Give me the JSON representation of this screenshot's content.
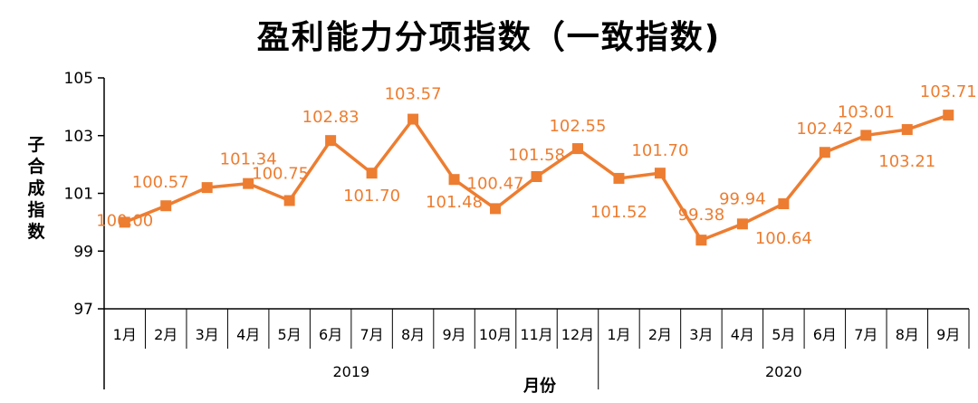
{
  "chart_data": {
    "type": "line",
    "title": "盈利能力分项指数（一致指数)",
    "ylabel": "子合成指数",
    "xlabel": "月份",
    "ylim": [
      97,
      105
    ],
    "yticks": [
      97,
      99,
      101,
      103,
      105
    ],
    "categories": [
      "1月",
      "2月",
      "3月",
      "4月",
      "5月",
      "6月",
      "7月",
      "8月",
      "9月",
      "10月",
      "11月",
      "12月",
      "1月",
      "2月",
      "3月",
      "4月",
      "5月",
      "6月",
      "7月",
      "8月",
      "9月"
    ],
    "groups": [
      {
        "label": "2019",
        "count": 12
      },
      {
        "label": "2020",
        "count": 9
      }
    ],
    "series": [
      {
        "values": [
          100.0,
          100.57,
          101.2,
          101.34,
          100.75,
          102.83,
          101.7,
          103.57,
          101.48,
          100.47,
          101.58,
          102.55,
          101.52,
          101.7,
          99.38,
          99.94,
          100.64,
          102.42,
          103.01,
          103.21,
          103.71
        ],
        "labels": [
          "100.00",
          "100.57",
          null,
          "101.34",
          "100.75",
          "102.83",
          "101.70",
          "103.57",
          "101.48",
          "100.47",
          "101.58",
          "102.55",
          "101.52",
          "101.70",
          "99.38",
          "99.94",
          "100.64",
          "102.42",
          "103.01",
          "103.21",
          "103.71"
        ],
        "color": "#ED7D31"
      }
    ],
    "grid": false,
    "legend": "none"
  }
}
